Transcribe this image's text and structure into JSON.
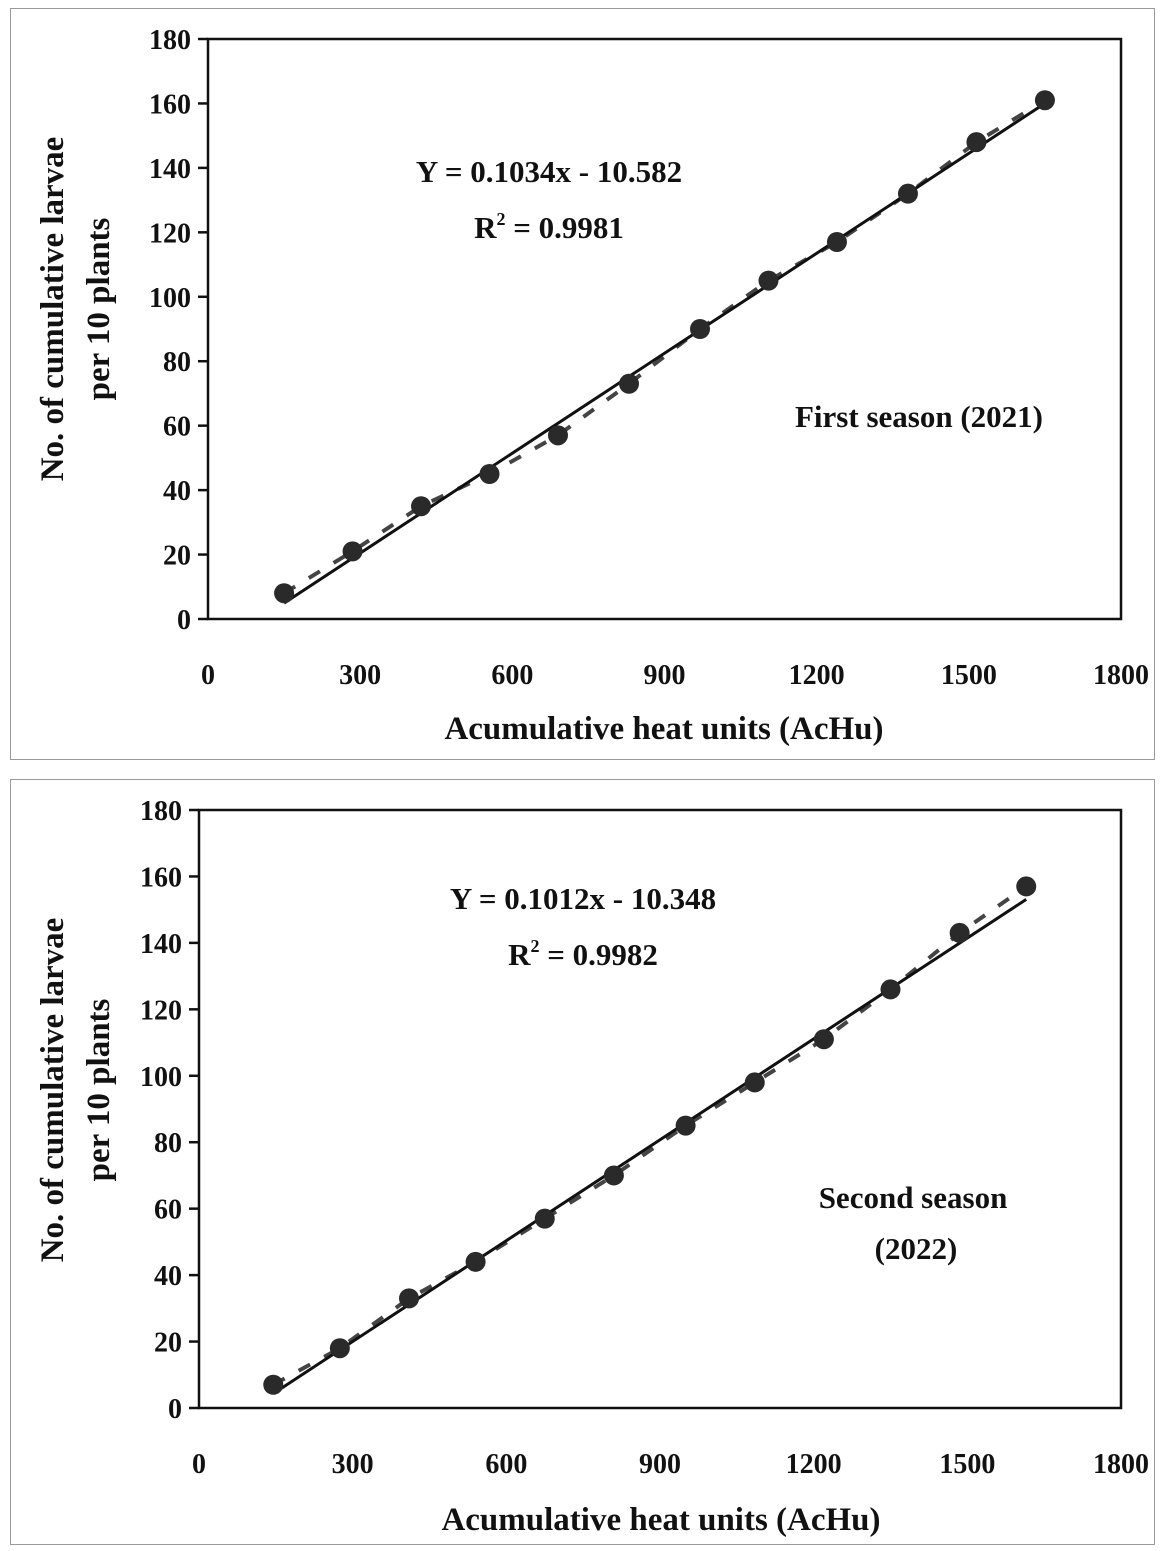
{
  "chart_data": [
    {
      "type": "scatter",
      "x": [
        150,
        285,
        420,
        555,
        690,
        830,
        970,
        1105,
        1240,
        1380,
        1515,
        1650
      ],
      "y": [
        8,
        21,
        35,
        45,
        57,
        73,
        90,
        105,
        117,
        132,
        148,
        161
      ],
      "trendline": {
        "slope": 0.1034,
        "intercept": -10.582
      },
      "xlabel": "Acumulative heat units (AcHu)",
      "ylabel_line1": "No. of cumulative larvae",
      "ylabel_line2": "per 10 plants",
      "equation": "Y = 0.1034x - 10.582",
      "r2_value": " = 0.9981",
      "season_line1": "First season (2021)",
      "season_line2": "",
      "xlim": [
        0,
        1800
      ],
      "ylim": [
        0,
        180
      ],
      "xticks": [
        "0",
        "300",
        "600",
        "900",
        "1200",
        "1500",
        "1800"
      ],
      "yticks": [
        "0",
        "20",
        "40",
        "60",
        "80",
        "100",
        "120",
        "140",
        "160",
        "180"
      ],
      "grid": false
    },
    {
      "type": "scatter",
      "x": [
        145,
        275,
        410,
        540,
        675,
        810,
        950,
        1085,
        1220,
        1350,
        1485,
        1615
      ],
      "y": [
        7,
        18,
        33,
        44,
        57,
        70,
        85,
        98,
        111,
        126,
        143,
        157
      ],
      "trendline": {
        "slope": 0.1012,
        "intercept": -10.348
      },
      "xlabel": "Acumulative heat units (AcHu)",
      "ylabel_line1": "No. of cumulative larvae",
      "ylabel_line2": "per 10 plants",
      "equation": "Y = 0.1012x - 10.348",
      "r2_value": " = 0.9982",
      "season_line1": "Second season",
      "season_line2": "(2022)",
      "xlim": [
        0,
        1800
      ],
      "ylim": [
        0,
        180
      ],
      "xticks": [
        "0",
        "300",
        "600",
        "900",
        "1200",
        "1500",
        "1800"
      ],
      "yticks": [
        "0",
        "20",
        "40",
        "60",
        "80",
        "100",
        "120",
        "140",
        "160",
        "180"
      ],
      "grid": false
    }
  ]
}
